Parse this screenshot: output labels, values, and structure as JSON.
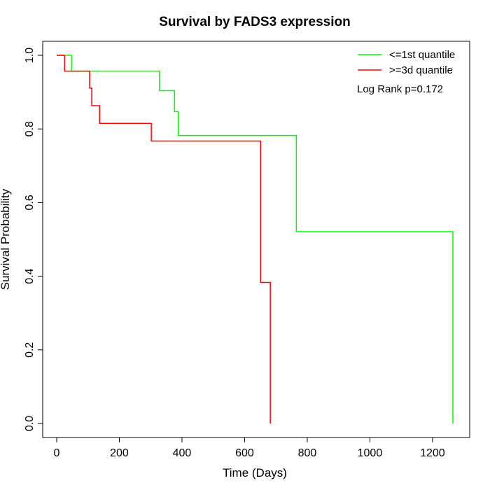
{
  "chart_data": {
    "type": "line",
    "title": "Survival by FADS3 expression",
    "xlabel": "Time (Days)",
    "ylabel": "Survival Probability",
    "xlim": [
      0,
      1265
    ],
    "ylim": [
      0,
      1
    ],
    "xticks": [
      0,
      200,
      400,
      600,
      800,
      1000,
      1200
    ],
    "yticks": [
      0.0,
      0.2,
      0.4,
      0.6,
      0.8,
      1.0
    ],
    "xtick_labels": [
      "0",
      "200",
      "400",
      "600",
      "800",
      "1000",
      "1200"
    ],
    "ytick_labels": [
      "0.0",
      "0.2",
      "0.4",
      "0.6",
      "0.8",
      "1.0"
    ],
    "legend_position": "top-right",
    "grid": false,
    "annotation": "Log Rank p=0.172",
    "series": [
      {
        "name": "<=1st quantile",
        "color": "#00ff00",
        "step": true,
        "x": [
          0,
          47,
          328,
          376,
          388,
          765,
          1265
        ],
        "y": [
          1.0,
          0.957,
          0.904,
          0.847,
          0.782,
          0.521,
          0.0
        ]
      },
      {
        "name": ">=3d quantile",
        "color": "#ff0000",
        "step": true,
        "x": [
          0,
          25,
          105,
          112,
          137,
          302,
          651,
          682
        ],
        "y": [
          1.0,
          0.957,
          0.911,
          0.863,
          0.815,
          0.767,
          0.383,
          0.0
        ]
      }
    ]
  }
}
